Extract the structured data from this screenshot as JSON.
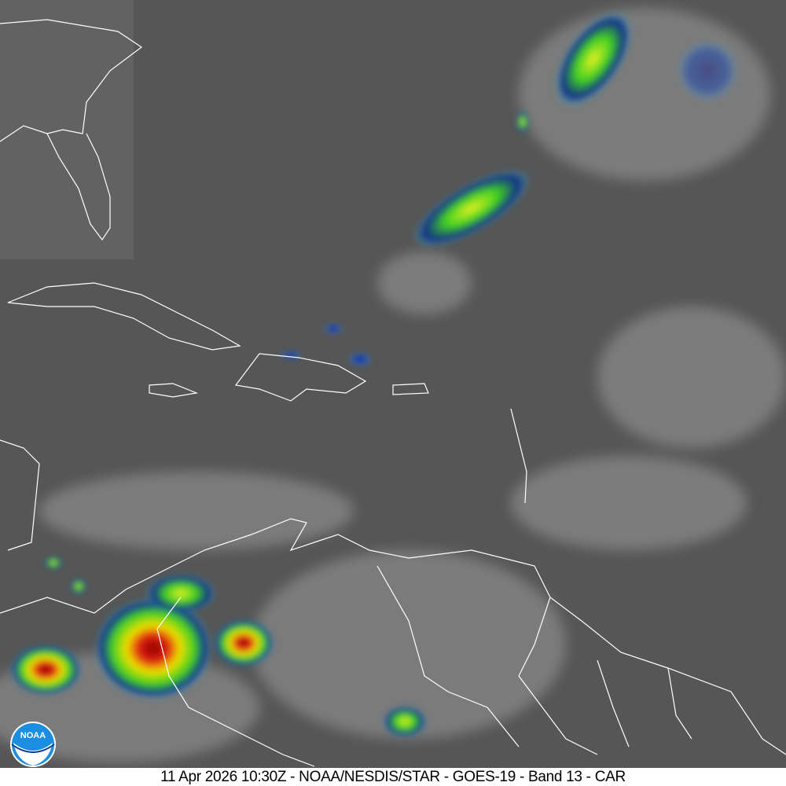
{
  "caption": "11 Apr 2026 10:30Z - NOAA/NESDIS/STAR - GOES-19 - Band 13 - CAR",
  "logo": {
    "text": "NOAA",
    "icon": "noaa-logo-icon"
  },
  "colors": {
    "background_gray": "#565656",
    "coastline": "#ffffff",
    "cold_cloud_blue": "#0a1e8c",
    "cold_cloud_green": "#3cdc28",
    "cold_cloud_yellow": "#f0f000",
    "cold_cloud_red": "#d21414",
    "logo_blue": "#1a8ee0"
  }
}
